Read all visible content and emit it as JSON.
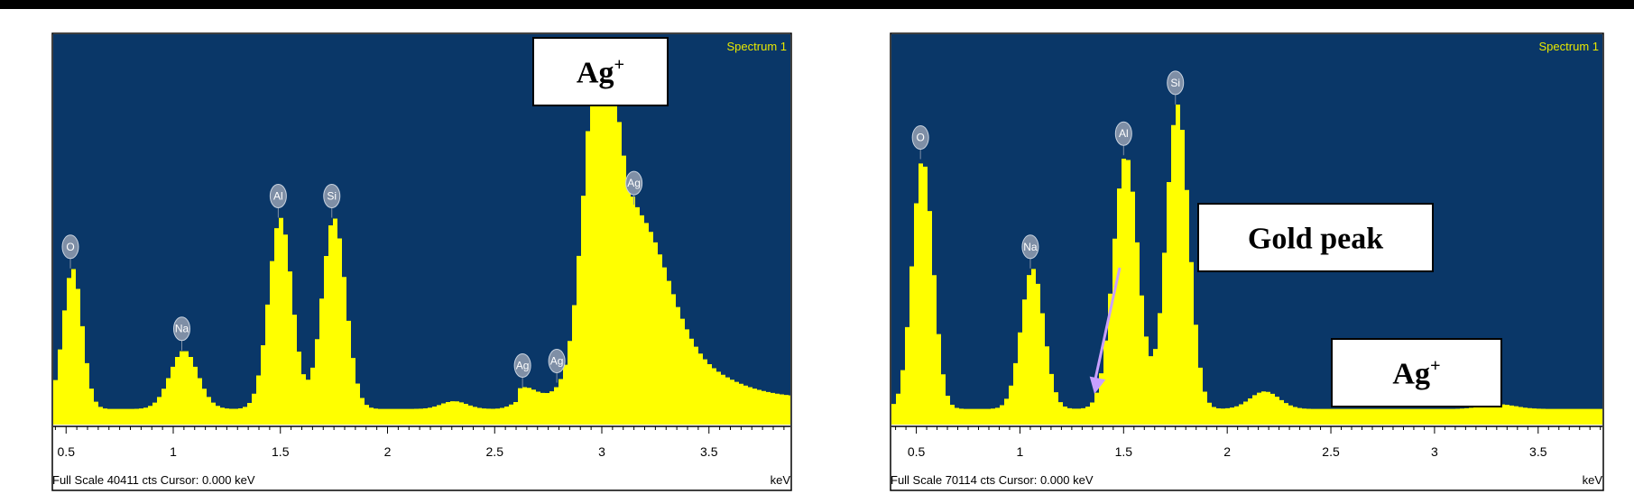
{
  "colors": {
    "plot_bg": "#0a3768",
    "spectrum_fill": "#ffff00",
    "title_color": "#e8e800",
    "marker_fill": "#7f8fa6",
    "arrow_color": "#c9a0ff"
  },
  "chart_data": [
    {
      "type": "area",
      "title": "Spectrum 1",
      "xlabel": "keV",
      "xlim": [
        0.44,
        3.88
      ],
      "x_ticks": [
        "0.5",
        "1",
        "1.5",
        "2",
        "2.5",
        "3",
        "3.5"
      ],
      "x_tick_values": [
        0.5,
        1,
        1.5,
        2,
        2.5,
        3,
        3.5
      ],
      "footer": "Full Scale 40411 cts  Cursor: 0.000 keV",
      "full_scale_cts": 40411,
      "background": [
        0.04,
        0.24,
        0.3,
        0.7
      ],
      "peaks": [
        {
          "x": 0.52,
          "h": 0.36,
          "w": 0.045
        },
        {
          "x": 1.04,
          "h": 0.15,
          "w": 0.065
        },
        {
          "x": 1.49,
          "h": 0.49,
          "w": 0.055
        },
        {
          "x": 1.74,
          "h": 0.49,
          "w": 0.055
        },
        {
          "x": 2.3,
          "h": 0.02,
          "w": 0.06
        },
        {
          "x": 2.63,
          "h": 0.025,
          "w": 0.05
        },
        {
          "x": 2.98,
          "h": 0.77,
          "w": 0.07
        },
        {
          "x": 3.15,
          "h": 0.4,
          "w": 0.14
        },
        {
          "x": 3.35,
          "h": 0.08,
          "w": 0.22
        }
      ],
      "markers": [
        {
          "label": "O",
          "x": 0.52
        },
        {
          "label": "Na",
          "x": 1.04
        },
        {
          "label": "Al",
          "x": 1.49
        },
        {
          "label": "Si",
          "x": 1.74
        },
        {
          "label": "Ag",
          "x": 2.63
        },
        {
          "label": "Ag",
          "x": 2.79
        },
        {
          "label": "Ag",
          "x": 3.15
        }
      ],
      "callouts": [
        {
          "text": "Ag",
          "sup": "+"
        }
      ]
    },
    {
      "type": "area",
      "title": "Spectrum 1",
      "xlabel": "keV",
      "xlim": [
        0.38,
        3.81
      ],
      "x_ticks": [
        "0.5",
        "1",
        "1.5",
        "2",
        "2.5",
        "3",
        "3.5"
      ],
      "x_tick_values": [
        0.5,
        1,
        1.5,
        2,
        2.5,
        3,
        3.5
      ],
      "footer": "Full Scale 70114 cts  Cursor: 0.000 keV",
      "full_scale_cts": 70114,
      "background": [
        0.04,
        0.05,
        0.0,
        0.0
      ],
      "peaks": [
        {
          "x": 0.52,
          "h": 0.64,
          "w": 0.05
        },
        {
          "x": 1.05,
          "h": 0.36,
          "w": 0.055
        },
        {
          "x": 1.5,
          "h": 0.65,
          "w": 0.06
        },
        {
          "x": 1.75,
          "h": 0.78,
          "w": 0.055
        },
        {
          "x": 2.17,
          "h": 0.045,
          "w": 0.07
        },
        {
          "x": 3.3,
          "h": 0.012,
          "w": 0.08
        }
      ],
      "markers": [
        {
          "label": "O",
          "x": 0.52
        },
        {
          "label": "Na",
          "x": 1.05
        },
        {
          "label": "Al",
          "x": 1.5
        },
        {
          "label": "Si",
          "x": 1.75
        }
      ],
      "callouts": [
        {
          "text": "Gold peak"
        },
        {
          "text": "Ag",
          "sup": "+"
        }
      ]
    }
  ]
}
